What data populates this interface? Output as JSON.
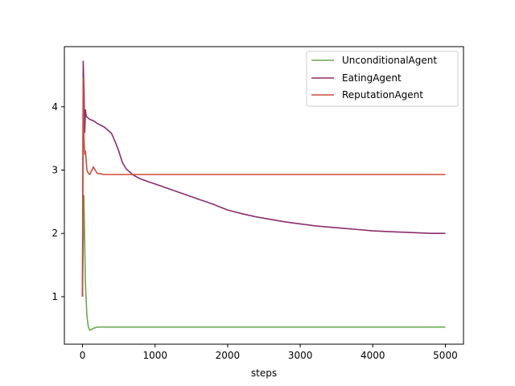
{
  "chart_data": {
    "type": "line",
    "title": "",
    "xlabel": "steps",
    "ylabel": "",
    "xlim": [
      -250,
      5250
    ],
    "ylim": [
      0.25,
      4.95
    ],
    "xticks": [
      0,
      1000,
      2000,
      3000,
      4000,
      5000
    ],
    "yticks": [
      1,
      2,
      3,
      4
    ],
    "grid": false,
    "legend_position": "top-right",
    "series": [
      {
        "name": "UnconditionalAgent",
        "color": "#6aa84f",
        "x": [
          0,
          20,
          40,
          60,
          80,
          100,
          150,
          200,
          300,
          500,
          1000,
          1500,
          2000,
          2500,
          3000,
          3500,
          4000,
          4500,
          5000
        ],
        "y": [
          1.0,
          2.6,
          1.2,
          0.7,
          0.52,
          0.47,
          0.5,
          0.52,
          0.52,
          0.52,
          0.52,
          0.52,
          0.52,
          0.52,
          0.52,
          0.52,
          0.52,
          0.52,
          0.52
        ]
      },
      {
        "name": "EatingAgent",
        "color": "#8b2d6e",
        "x": [
          0,
          10,
          20,
          30,
          40,
          50,
          70,
          100,
          150,
          200,
          300,
          400,
          450,
          500,
          550,
          600,
          700,
          800,
          900,
          1000,
          1200,
          1400,
          1600,
          1800,
          2000,
          2200,
          2400,
          2600,
          2800,
          3000,
          3200,
          3400,
          3600,
          3800,
          4000,
          4200,
          4400,
          4600,
          4800,
          5000
        ],
        "y": [
          1.0,
          4.72,
          4.3,
          3.6,
          3.95,
          3.85,
          3.83,
          3.8,
          3.78,
          3.74,
          3.68,
          3.58,
          3.45,
          3.3,
          3.12,
          3.02,
          2.92,
          2.86,
          2.82,
          2.78,
          2.7,
          2.62,
          2.54,
          2.46,
          2.37,
          2.31,
          2.26,
          2.22,
          2.18,
          2.15,
          2.12,
          2.1,
          2.08,
          2.06,
          2.04,
          2.03,
          2.02,
          2.01,
          2.0,
          2.0
        ]
      },
      {
        "name": "ReputationAgent",
        "color": "#cd4b3c",
        "x": [
          0,
          10,
          20,
          30,
          40,
          60,
          80,
          100,
          150,
          200,
          300,
          500,
          1000,
          1500,
          2000,
          2500,
          3000,
          3500,
          4000,
          4500,
          5000
        ],
        "y": [
          1.0,
          4.45,
          3.5,
          3.25,
          3.3,
          3.0,
          2.95,
          2.93,
          3.05,
          2.95,
          2.93,
          2.93,
          2.93,
          2.93,
          2.93,
          2.93,
          2.93,
          2.93,
          2.93,
          2.93,
          2.93
        ]
      }
    ]
  }
}
